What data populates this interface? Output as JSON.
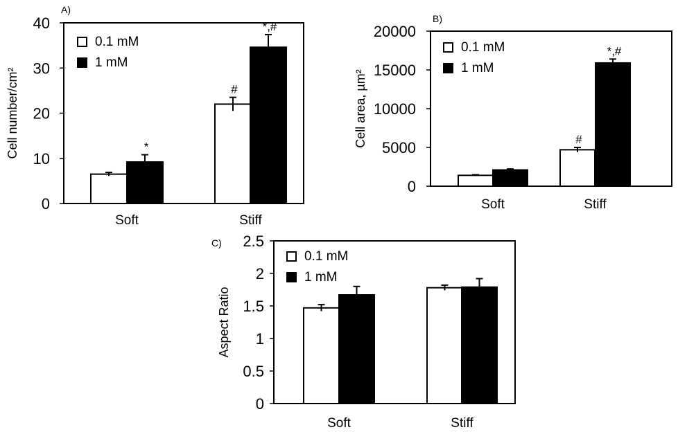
{
  "chart_data": [
    {
      "type": "bar",
      "panel_label": "A)",
      "ylabel": "Cell number/cm²",
      "categories": [
        "Soft",
        "Stiff"
      ],
      "series": [
        {
          "name": "0.1 mM",
          "color": "#ffffff",
          "values": [
            6.5,
            22
          ],
          "errors": [
            0.4,
            1.5
          ]
        },
        {
          "name": "1 mM",
          "color": "#000000",
          "values": [
            9.2,
            34.6
          ],
          "errors": [
            1.6,
            2.8
          ]
        }
      ],
      "annotations": [
        [
          "",
          "*"
        ],
        [
          "#",
          "*,#"
        ]
      ],
      "ylim": [
        0,
        40
      ],
      "yticks": [
        0,
        10,
        20,
        30,
        40
      ],
      "legend_position": "top-left",
      "grid": false
    },
    {
      "type": "bar",
      "panel_label": "B)",
      "ylabel": "Cell area, µm²",
      "categories": [
        "Soft",
        "Stiff"
      ],
      "series": [
        {
          "name": "0.1 mM",
          "color": "#ffffff",
          "values": [
            1400,
            4700
          ],
          "errors": [
            80,
            300
          ]
        },
        {
          "name": "1 mM",
          "color": "#000000",
          "values": [
            2100,
            15900
          ],
          "errors": [
            120,
            500
          ]
        }
      ],
      "annotations": [
        [
          "",
          ""
        ],
        [
          "#",
          "*,#"
        ]
      ],
      "ylim": [
        0,
        20000
      ],
      "yticks": [
        0,
        5000,
        10000,
        15000,
        20000
      ],
      "legend_position": "top-left",
      "grid": false
    },
    {
      "type": "bar",
      "panel_label": "C)",
      "ylabel": "Aspect Ratio",
      "categories": [
        "Soft",
        "Stiff"
      ],
      "series": [
        {
          "name": "0.1 mM",
          "color": "#ffffff",
          "values": [
            1.47,
            1.78
          ],
          "errors": [
            0.05,
            0.04
          ]
        },
        {
          "name": "1 mM",
          "color": "#000000",
          "values": [
            1.67,
            1.79
          ],
          "errors": [
            0.13,
            0.13
          ]
        }
      ],
      "annotations": [
        [
          "",
          ""
        ],
        [
          "",
          ""
        ]
      ],
      "ylim": [
        0,
        2.5
      ],
      "yticks": [
        0,
        0.5,
        1,
        1.5,
        2,
        2.5
      ],
      "legend_position": "top-left",
      "grid": false
    }
  ]
}
